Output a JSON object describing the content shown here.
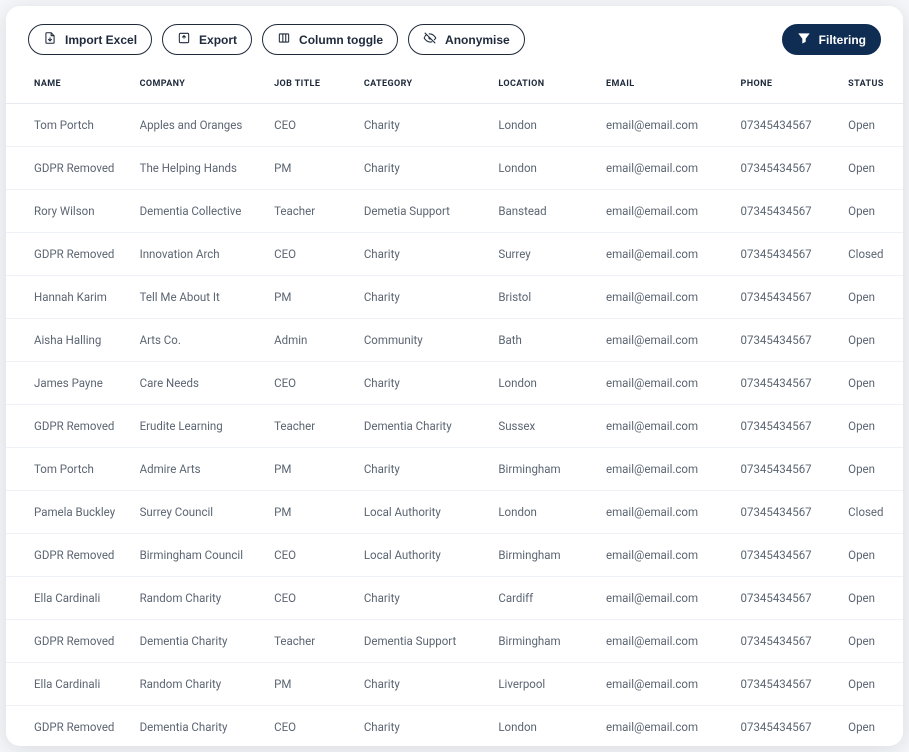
{
  "toolbar": {
    "import_label": "Import Excel",
    "export_label": "Export",
    "column_toggle_label": "Column toggle",
    "anonymise_label": "Anonymise",
    "filtering_label": "Filtering"
  },
  "table": {
    "columns": [
      "NAME",
      "COMPANY",
      "JOB TITLE",
      "CATEGORY",
      "LOCATION",
      "EMAIL",
      "PHONE",
      "STATUS"
    ],
    "rows": [
      [
        "Tom Portch",
        "Apples and Oranges",
        "CEO",
        "Charity",
        "London",
        "email@email.com",
        "07345434567",
        "Open"
      ],
      [
        "GDPR Removed",
        "The Helping Hands",
        "PM",
        "Charity",
        "London",
        "email@email.com",
        "07345434567",
        "Open"
      ],
      [
        "Rory Wilson",
        "Dementia Collective",
        "Teacher",
        "Demetia Support",
        "Banstead",
        "email@email.com",
        "07345434567",
        "Open"
      ],
      [
        "GDPR Removed",
        "Innovation Arch",
        "CEO",
        "Charity",
        "Surrey",
        "email@email.com",
        "07345434567",
        "Closed"
      ],
      [
        "Hannah Karim",
        "Tell Me About It",
        "PM",
        "Charity",
        "Bristol",
        "email@email.com",
        "07345434567",
        "Open"
      ],
      [
        "Aisha Halling",
        "Arts Co.",
        "Admin",
        "Community",
        "Bath",
        "email@email.com",
        "07345434567",
        "Open"
      ],
      [
        "James Payne",
        "Care Needs",
        "CEO",
        "Charity",
        "London",
        "email@email.com",
        "07345434567",
        "Open"
      ],
      [
        "GDPR Removed",
        "Erudite Learning",
        "Teacher",
        "Dementia Charity",
        "Sussex",
        "email@email.com",
        "07345434567",
        "Open"
      ],
      [
        "Tom Portch",
        "Admire Arts",
        "PM",
        "Charity",
        "Birmingham",
        "email@email.com",
        "07345434567",
        "Open"
      ],
      [
        "Pamela Buckley",
        "Surrey Council",
        "PM",
        "Local Authority",
        "London",
        "email@email.com",
        "07345434567",
        "Closed"
      ],
      [
        "GDPR Removed",
        "Birmingham Council",
        "CEO",
        "Local Authority",
        "Birmingham",
        "email@email.com",
        "07345434567",
        "Open"
      ],
      [
        "Ella Cardinali",
        "Random Charity",
        "CEO",
        "Charity",
        "Cardiff",
        "email@email.com",
        "07345434567",
        "Open"
      ],
      [
        "GDPR Removed",
        "Dementia Charity",
        "Teacher",
        "Dementia Support",
        "Birmingham",
        "email@email.com",
        "07345434567",
        "Open"
      ],
      [
        "Ella Cardinali",
        "Random Charity",
        "PM",
        "Charity",
        "Liverpool",
        "email@email.com",
        "07345434567",
        "Open"
      ],
      [
        "GDPR Removed",
        "Dementia Charity",
        "CEO",
        "Charity",
        "London",
        "email@email.com",
        "07345434567",
        "Open"
      ]
    ]
  },
  "style": {
    "card_bg": "#ffffff",
    "border_color": "#e6e9ef",
    "row_border_color": "#eef1f5",
    "header_text_color": "#1e293b",
    "cell_text_color": "#5b6572",
    "btn_border_color": "#1e293b",
    "btn_primary_bg": "#0f2d52",
    "font_size_header": 9,
    "font_size_cell": 11.5,
    "font_size_btn": 12
  }
}
